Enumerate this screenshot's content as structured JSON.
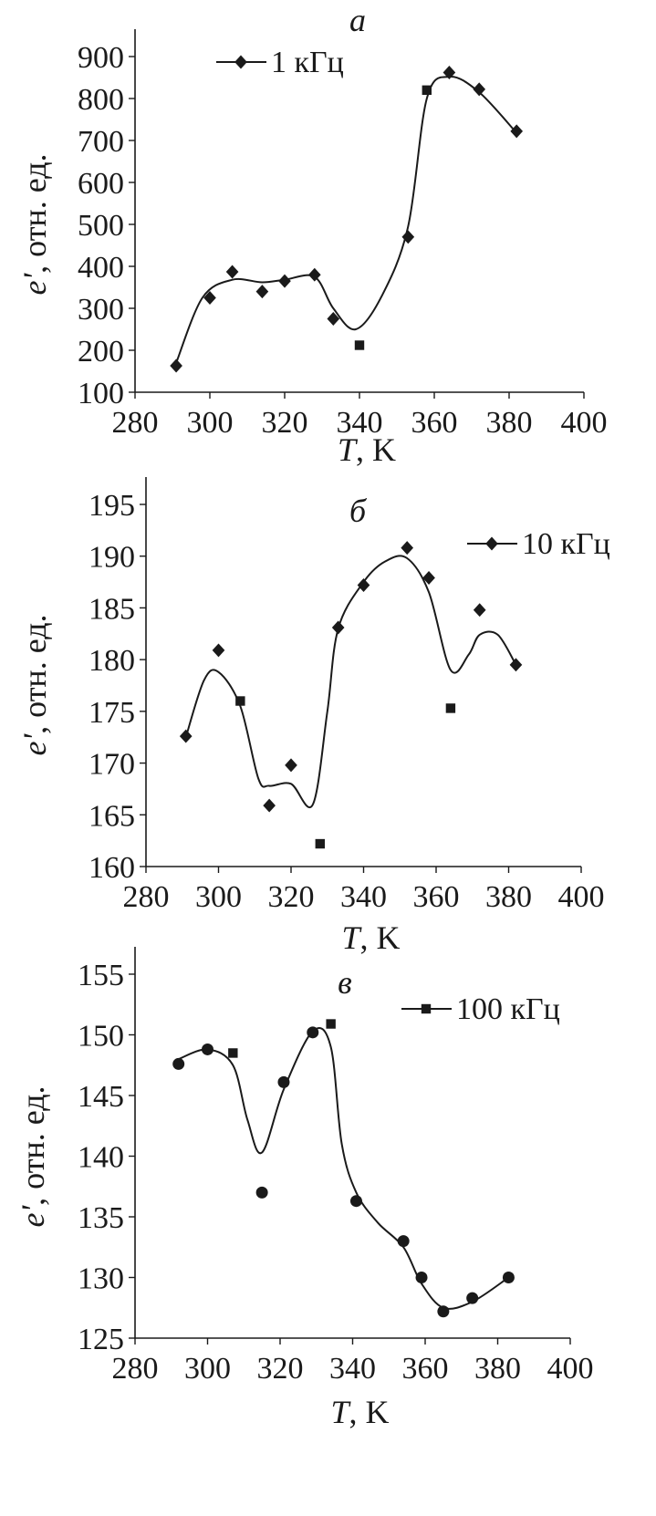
{
  "chart_data": [
    {
      "type": "scatter",
      "panel_label": "а",
      "series": [
        {
          "name": "1 кГц",
          "x": [
            291,
            300,
            306,
            314,
            320,
            328,
            333,
            340,
            353,
            358,
            364,
            372,
            382
          ],
          "y": [
            163,
            325,
            387,
            340,
            365,
            380,
            275,
            212,
            470,
            820,
            862,
            822,
            722
          ],
          "markers": [
            "diamond",
            "diamond",
            "diamond",
            "diamond",
            "diamond",
            "diamond",
            "diamond",
            "square",
            "diamond",
            "square",
            "diamond",
            "diamond",
            "diamond"
          ]
        }
      ],
      "curve": {
        "x": [
          291,
          298,
          306,
          314,
          320,
          328,
          333,
          339,
          346,
          353,
          358,
          364,
          372,
          382
        ],
        "y": [
          170,
          325,
          368,
          362,
          368,
          375,
          300,
          250,
          330,
          495,
          800,
          852,
          815,
          718
        ]
      },
      "xlim": [
        280,
        400
      ],
      "xticks": [
        280,
        300,
        320,
        340,
        360,
        380,
        400
      ],
      "ylim": [
        100,
        900
      ],
      "yticks": [
        100,
        200,
        300,
        400,
        500,
        600,
        700,
        800,
        900
      ],
      "xlabel_var": "T",
      "xlabel_unit": ", K",
      "ylabel_var": "e'",
      "ylabel_unit": ", отн. ед.",
      "legend_position": "top-center"
    },
    {
      "type": "scatter",
      "panel_label": "б",
      "series": [
        {
          "name": "10 кГц",
          "x": [
            291,
            300,
            306,
            314,
            320,
            328,
            333,
            340,
            352,
            358,
            364,
            372,
            382
          ],
          "y": [
            172.6,
            180.9,
            176.0,
            165.9,
            169.8,
            162.2,
            183.1,
            187.2,
            190.8,
            187.9,
            175.3,
            184.8,
            179.5
          ],
          "markers": [
            "diamond",
            "diamond",
            "square",
            "diamond",
            "diamond",
            "square",
            "diamond",
            "diamond",
            "diamond",
            "diamond",
            "square",
            "diamond",
            "diamond"
          ]
        }
      ],
      "curve": {
        "x": [
          291,
          296,
          300,
          306,
          311,
          314,
          320,
          326,
          330,
          333,
          340,
          346,
          352,
          358,
          364,
          369,
          372,
          377,
          382
        ],
        "y": [
          172.5,
          178.0,
          178.8,
          175.5,
          168.5,
          167.8,
          168.0,
          166.0,
          175.0,
          183.0,
          187.5,
          189.5,
          189.8,
          186.5,
          179.0,
          180.5,
          182.4,
          182.4,
          179.5
        ]
      },
      "xlim": [
        280,
        400
      ],
      "xticks": [
        280,
        300,
        320,
        340,
        360,
        380,
        400
      ],
      "ylim": [
        160,
        195
      ],
      "yticks": [
        160,
        165,
        170,
        175,
        180,
        185,
        190,
        195
      ],
      "xlabel_var": "T",
      "xlabel_unit": ", K",
      "ylabel_var": "e'",
      "ylabel_unit": ", отн. ед.",
      "legend_position": "top-right"
    },
    {
      "type": "scatter",
      "panel_label": "в",
      "series": [
        {
          "name": "100 кГц",
          "x": [
            292,
            300,
            307,
            315,
            321,
            329,
            334,
            341,
            354,
            359,
            365,
            373,
            383
          ],
          "y": [
            147.6,
            148.8,
            148.5,
            137.0,
            146.1,
            150.2,
            150.9,
            136.3,
            133.0,
            130.0,
            127.2,
            128.3,
            130.0
          ],
          "markers": [
            "circle",
            "circle",
            "square",
            "circle",
            "circle",
            "circle",
            "square",
            "circle",
            "circle",
            "circle",
            "circle",
            "circle",
            "circle"
          ]
        }
      ],
      "curve": {
        "x": [
          292,
          300,
          307,
          311,
          315,
          321,
          329,
          334,
          337,
          341,
          347,
          354,
          359,
          365,
          373,
          383
        ],
        "y": [
          148.0,
          148.8,
          147.5,
          143.0,
          140.3,
          145.5,
          150.3,
          149.0,
          141.0,
          137.0,
          134.5,
          132.5,
          129.5,
          127.5,
          128.0,
          130.0
        ]
      },
      "xlim": [
        280,
        400
      ],
      "xticks": [
        280,
        300,
        320,
        340,
        360,
        380,
        400
      ],
      "ylim": [
        125,
        155
      ],
      "yticks": [
        125,
        130,
        135,
        140,
        145,
        150,
        155
      ],
      "xlabel_var": "T",
      "xlabel_unit": ", K",
      "ylabel_var": "e'",
      "ylabel_unit": ", отн. ед.",
      "legend_position": "top-right"
    }
  ],
  "colors": {
    "ink": "#1a1a1a",
    "background": "#ffffff"
  }
}
